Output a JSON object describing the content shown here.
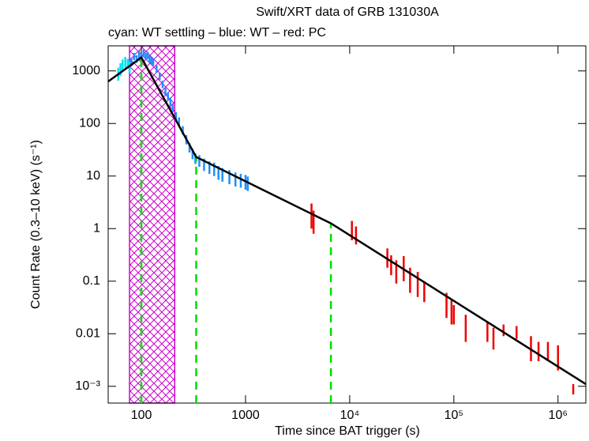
{
  "chart_data": {
    "type": "scatter",
    "title": "Swift/XRT data of GRB 131030A",
    "subtitle": "cyan: WT settling – blue: WT – red: PC",
    "x_label": "Time since BAT trigger (s)",
    "y_label": "Count Rate (0.3–10 keV) (s⁻¹)",
    "x_log": true,
    "y_log": true,
    "xlim": [
      48,
      1850000
    ],
    "ylim": [
      0.00048,
      3000
    ],
    "xticks": [
      100,
      1000,
      {
        "value": 10000,
        "label": "10⁴"
      },
      {
        "value": 100000,
        "label": "10⁵"
      },
      {
        "value": 1000000,
        "label": "10⁶"
      }
    ],
    "yticks": [
      {
        "value": 0.001,
        "label": "10⁻³"
      },
      0.01,
      0.1,
      1,
      10,
      100,
      1000
    ],
    "shaded_region": [
      77,
      209
    ],
    "shaded_color": "#cc00cc",
    "breaks": [
      100,
      336,
      6600
    ],
    "break_color": "#00dd00",
    "series": [
      {
        "name": "WT settling",
        "style": "errorbar",
        "color": "#00e0f0",
        "x": [
          60,
          63,
          66,
          70,
          74,
          77
        ],
        "y": [
          900,
          1100,
          1300,
          1500,
          1400,
          1200
        ],
        "yerr": [
          250,
          300,
          350,
          350,
          300,
          300
        ]
      },
      {
        "name": "WT",
        "style": "errorbar",
        "color": "#1e8fff",
        "x": [
          80,
          85,
          90,
          95,
          100,
          105,
          110,
          115,
          120,
          125,
          130,
          140,
          150,
          160,
          170,
          180,
          190,
          200,
          215,
          230,
          250,
          270,
          290,
          310,
          330,
          360,
          400,
          450,
          500,
          550,
          600,
          700,
          800,
          900,
          1000,
          1050
        ],
        "y": [
          1500,
          1900,
          1700,
          2100,
          1800,
          2200,
          1900,
          2000,
          1700,
          1600,
          1500,
          1100,
          800,
          560,
          420,
          330,
          260,
          200,
          140,
          110,
          75,
          50,
          35,
          27,
          22,
          20,
          17,
          15,
          14,
          12,
          11,
          10,
          9,
          8.5,
          8,
          7.5
        ],
        "yerr": [
          250,
          300,
          280,
          350,
          300,
          350,
          300,
          320,
          280,
          260,
          240,
          180,
          130,
          90,
          70,
          55,
          45,
          35,
          25,
          20,
          14,
          10,
          7,
          6,
          5,
          5,
          4.5,
          4,
          4,
          3.5,
          3.2,
          3,
          2.7,
          2.5,
          2.5,
          2.3
        ]
      },
      {
        "name": "PC",
        "style": "errorbar",
        "color": "#ee0000",
        "x": [
          4300,
          4500,
          10500,
          11500,
          23000,
          25000,
          28000,
          33000,
          38000,
          45000,
          52000,
          85000,
          95000,
          100000,
          130000,
          210000,
          240000,
          300000,
          400000,
          550000,
          650000,
          800000,
          1000000,
          1400000
        ],
        "y": [
          2.0,
          1.5,
          1.0,
          0.8,
          0.3,
          0.22,
          0.17,
          0.2,
          0.12,
          0.1,
          0.07,
          0.04,
          0.03,
          0.025,
          0.015,
          0.012,
          0.009,
          0.012,
          0.011,
          0.006,
          0.005,
          0.005,
          0.004,
          0.0009
        ],
        "yerr": [
          1.0,
          0.7,
          0.4,
          0.3,
          0.12,
          0.09,
          0.08,
          0.1,
          0.06,
          0.05,
          0.03,
          0.02,
          0.015,
          0.01,
          0.008,
          0.005,
          0.004,
          0.003,
          0.003,
          0.003,
          0.002,
          0.002,
          0.002,
          0.0002
        ]
      },
      {
        "name": "model",
        "style": "line",
        "color": "#000000",
        "x": [
          48,
          100,
          336,
          6600,
          1850000
        ],
        "y": [
          630,
          1800,
          23,
          1.26,
          0.0011
        ]
      }
    ]
  }
}
